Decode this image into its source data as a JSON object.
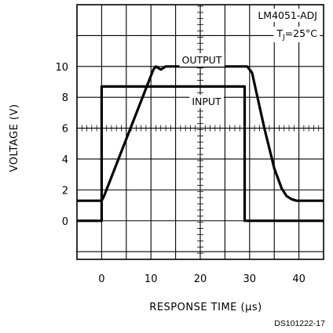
{
  "chart_data": {
    "type": "line",
    "xlabel": "RESPONSE TIME (μs)",
    "ylabel": "VOLTAGE (V)",
    "xlim": [
      -5,
      45
    ],
    "ylim": [
      -2.5,
      14
    ],
    "x_ticks": [
      0,
      10,
      20,
      30,
      40
    ],
    "y_ticks": [
      0,
      2,
      4,
      6,
      8,
      10
    ],
    "grid": true,
    "series": [
      {
        "name": "OUTPUT",
        "x": [
          -5,
          0,
          0.5,
          10.5,
          11,
          11.5,
          12,
          12.5,
          13,
          14,
          29.5,
          30.5,
          33,
          35,
          36.5,
          37.5,
          38.5,
          39.5,
          41,
          45
        ],
        "y": [
          1.3,
          1.3,
          1.6,
          9.8,
          10.0,
          9.9,
          9.8,
          9.9,
          10.0,
          10.0,
          10.0,
          9.6,
          6.0,
          3.4,
          2.1,
          1.6,
          1.4,
          1.3,
          1.3,
          1.3
        ]
      },
      {
        "name": "INPUT",
        "x": [
          -5,
          0,
          0,
          29,
          29,
          45
        ],
        "y": [
          0,
          0,
          8.7,
          8.7,
          0,
          0
        ]
      }
    ],
    "annotations": {
      "device": "LM4051-ADJ",
      "temperature": "T",
      "temperature_sub": "J",
      "temperature_value": "=25°C",
      "output_label": "OUTPUT",
      "input_label": "INPUT",
      "figure_id": "DS101222-17"
    }
  }
}
